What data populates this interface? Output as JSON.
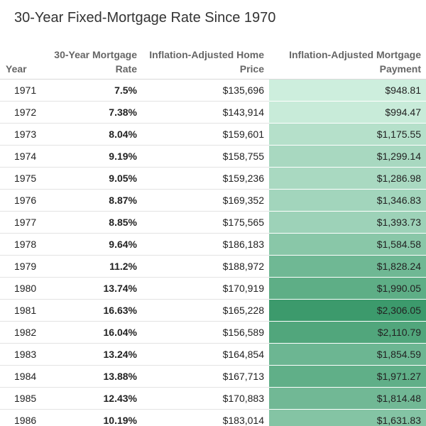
{
  "title": "30-Year Fixed-Mortgage Rate Since 1970",
  "headers": {
    "year": "Year",
    "rate": "30-Year Mortgage Rate",
    "price": "Inflation-Adjusted Home Price",
    "payment": "Inflation-Adjusted Mortgage Payment"
  },
  "chart_data": {
    "type": "table",
    "columns": [
      "Year",
      "30-Year Mortgage Rate",
      "Inflation-Adjusted Home Price",
      "Inflation-Adjusted Mortgage Payment"
    ],
    "rows": [
      {
        "year": "1971",
        "rate": "7.5%",
        "price": "$135,696",
        "payment": "$948.81",
        "payment_value": 948.81
      },
      {
        "year": "1972",
        "rate": "7.38%",
        "price": "$143,914",
        "payment": "$994.47",
        "payment_value": 994.47
      },
      {
        "year": "1973",
        "rate": "8.04%",
        "price": "$159,601",
        "payment": "$1,175.55",
        "payment_value": 1175.55
      },
      {
        "year": "1974",
        "rate": "9.19%",
        "price": "$158,755",
        "payment": "$1,299.14",
        "payment_value": 1299.14
      },
      {
        "year": "1975",
        "rate": "9.05%",
        "price": "$159,236",
        "payment": "$1,286.98",
        "payment_value": 1286.98
      },
      {
        "year": "1976",
        "rate": "8.87%",
        "price": "$169,352",
        "payment": "$1,346.83",
        "payment_value": 1346.83
      },
      {
        "year": "1977",
        "rate": "8.85%",
        "price": "$175,565",
        "payment": "$1,393.73",
        "payment_value": 1393.73
      },
      {
        "year": "1978",
        "rate": "9.64%",
        "price": "$186,183",
        "payment": "$1,584.58",
        "payment_value": 1584.58
      },
      {
        "year": "1979",
        "rate": "11.2%",
        "price": "$188,972",
        "payment": "$1,828.24",
        "payment_value": 1828.24
      },
      {
        "year": "1980",
        "rate": "13.74%",
        "price": "$170,919",
        "payment": "$1,990.05",
        "payment_value": 1990.05
      },
      {
        "year": "1981",
        "rate": "16.63%",
        "price": "$165,228",
        "payment": "$2,306.05",
        "payment_value": 2306.05
      },
      {
        "year": "1982",
        "rate": "16.04%",
        "price": "$156,589",
        "payment": "$2,110.79",
        "payment_value": 2110.79
      },
      {
        "year": "1983",
        "rate": "13.24%",
        "price": "$164,854",
        "payment": "$1,854.59",
        "payment_value": 1854.59
      },
      {
        "year": "1984",
        "rate": "13.88%",
        "price": "$167,713",
        "payment": "$1,971.27",
        "payment_value": 1971.27
      },
      {
        "year": "1985",
        "rate": "12.43%",
        "price": "$170,883",
        "payment": "$1,814.48",
        "payment_value": 1814.48
      },
      {
        "year": "1986",
        "rate": "10.19%",
        "price": "$183,014",
        "payment": "$1,631.83",
        "payment_value": 1631.83
      }
    ],
    "payment_color_scale": {
      "low": "#cdeedd",
      "high": "#3c9a6c"
    }
  }
}
